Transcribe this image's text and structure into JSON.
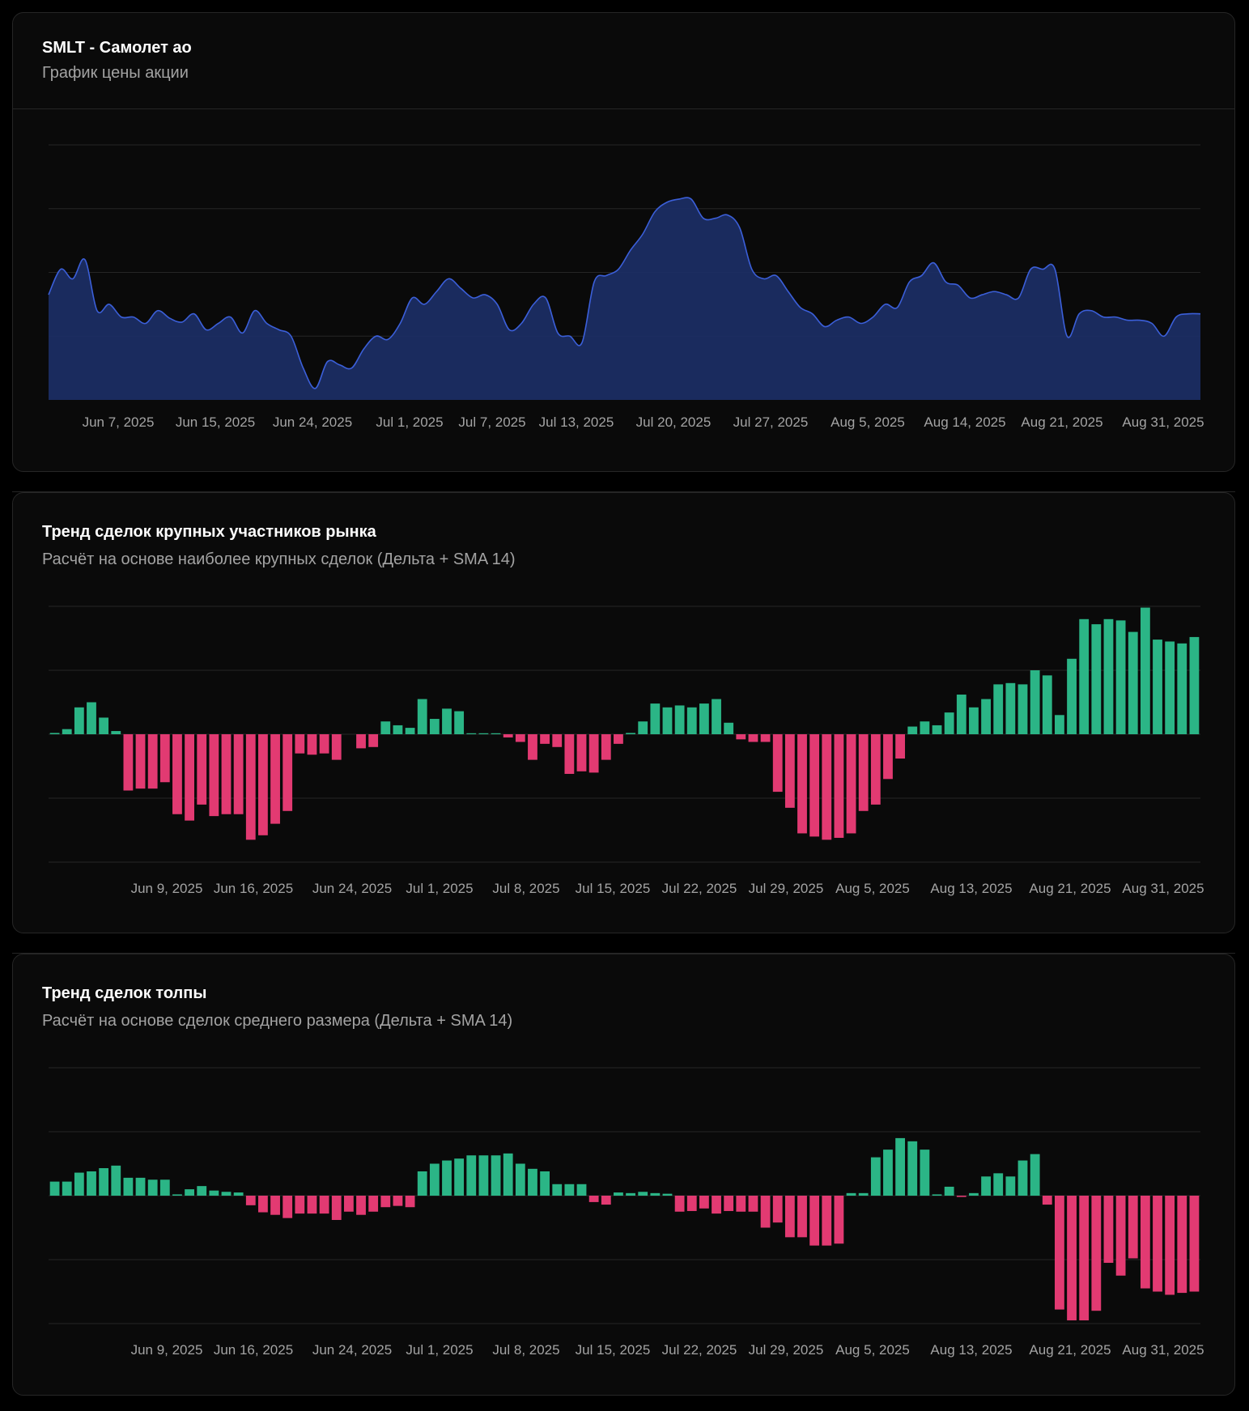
{
  "price_card": {
    "title": "SMLT - Самолет ао",
    "subtitle": "График цены акции"
  },
  "large_card": {
    "title": "Тренд сделок крупных участников рынка",
    "subtitle": "Расчёт на основе наиболее крупных сделок (Дельта + SMA 14)"
  },
  "crowd_card": {
    "title": "Тренд сделок толпы",
    "subtitle": "Расчёт на основе сделок среднего размера (Дельта + SMA 14)"
  },
  "colors": {
    "price_line": "#3b5fd9",
    "price_fill": "#1b2d63",
    "positive": "#2bb586",
    "negative": "#e23a72",
    "grid": "#262626",
    "card_bg": "#0a0a0a"
  },
  "chart_data": [
    {
      "type": "area",
      "ylim": [
        0,
        4
      ],
      "grid": true,
      "x_ticks": [
        "Jun 7, 2025",
        "Jun 15, 2025",
        "Jun 24, 2025",
        "Jul 1, 2025",
        "Jul 7, 2025",
        "Jul 13, 2025",
        "Jul 20, 2025",
        "Jul 27, 2025",
        "Aug 5, 2025",
        "Aug 14, 2025",
        "Aug 21, 2025",
        "Aug 31, 2025"
      ],
      "values": [
        1.65,
        2.05,
        1.9,
        2.2,
        1.4,
        1.5,
        1.3,
        1.3,
        1.2,
        1.4,
        1.28,
        1.22,
        1.35,
        1.1,
        1.2,
        1.3,
        1.05,
        1.4,
        1.2,
        1.1,
        1.0,
        0.5,
        0.18,
        0.6,
        0.55,
        0.5,
        0.8,
        1.0,
        0.95,
        1.2,
        1.6,
        1.5,
        1.7,
        1.9,
        1.75,
        1.6,
        1.65,
        1.5,
        1.1,
        1.2,
        1.5,
        1.6,
        1.05,
        1.0,
        0.9,
        1.85,
        1.95,
        2.05,
        2.35,
        2.6,
        2.95,
        3.1,
        3.15,
        3.15,
        2.85,
        2.85,
        2.9,
        2.7,
        2.05,
        1.9,
        1.95,
        1.7,
        1.45,
        1.35,
        1.15,
        1.25,
        1.3,
        1.2,
        1.3,
        1.5,
        1.45,
        1.85,
        1.95,
        2.15,
        1.85,
        1.8,
        1.6,
        1.65,
        1.7,
        1.65,
        1.6,
        2.05,
        2.05,
        2.05,
        1.0,
        1.35,
        1.4,
        1.3,
        1.3,
        1.25,
        1.25,
        1.2,
        1.0,
        1.3,
        1.35,
        1.35
      ]
    },
    {
      "type": "bar",
      "ylim": [
        -2,
        2
      ],
      "grid": true,
      "x_ticks": [
        "Jun 9, 2025",
        "Jun 16, 2025",
        "Jun 24, 2025",
        "Jul 1, 2025",
        "Jul 8, 2025",
        "Jul 15, 2025",
        "Jul 22, 2025",
        "Jul 29, 2025",
        "Aug 5, 2025",
        "Aug 13, 2025",
        "Aug 21, 2025",
        "Aug 31, 2025"
      ],
      "values": [
        0.02,
        0.08,
        0.42,
        0.5,
        0.26,
        0.05,
        -0.88,
        -0.85,
        -0.85,
        -0.75,
        -1.25,
        -1.35,
        -1.1,
        -1.28,
        -1.25,
        -1.25,
        -1.65,
        -1.58,
        -1.4,
        -1.2,
        -0.3,
        -0.32,
        -0.3,
        -0.4,
        null,
        -0.22,
        -0.2,
        0.2,
        0.14,
        0.1,
        0.55,
        0.24,
        0.4,
        0.36,
        0.0,
        0.0,
        0.0,
        -0.05,
        -0.12,
        -0.4,
        -0.15,
        -0.2,
        -0.62,
        -0.58,
        -0.6,
        -0.4,
        -0.15,
        0.02,
        0.2,
        0.48,
        0.42,
        0.45,
        0.42,
        0.48,
        0.55,
        0.18,
        -0.08,
        -0.12,
        -0.12,
        -0.9,
        -1.15,
        -1.55,
        -1.6,
        -1.65,
        -1.62,
        -1.55,
        -1.2,
        -1.1,
        -0.7,
        -0.38,
        0.12,
        0.2,
        0.14,
        0.34,
        0.62,
        0.42,
        0.55,
        0.78,
        0.8,
        0.78,
        1.0,
        0.92,
        0.3,
        1.18,
        1.8,
        1.72,
        1.8,
        1.78,
        1.6,
        1.98,
        1.48,
        1.45,
        1.42,
        1.52
      ]
    },
    {
      "type": "bar",
      "ylim": [
        -2,
        2
      ],
      "grid": true,
      "x_ticks": [
        "Jun 9, 2025",
        "Jun 16, 2025",
        "Jun 24, 2025",
        "Jul 1, 2025",
        "Jul 8, 2025",
        "Jul 15, 2025",
        "Jul 22, 2025",
        "Jul 29, 2025",
        "Aug 5, 2025",
        "Aug 13, 2025",
        "Aug 21, 2025",
        "Aug 31, 2025"
      ],
      "values": [
        0.22,
        0.22,
        0.36,
        0.38,
        0.43,
        0.47,
        0.28,
        0.28,
        0.25,
        0.25,
        0.02,
        0.1,
        0.15,
        0.08,
        0.06,
        0.05,
        -0.15,
        -0.26,
        -0.3,
        -0.35,
        -0.28,
        -0.28,
        -0.28,
        -0.38,
        -0.25,
        -0.3,
        -0.25,
        -0.18,
        -0.16,
        -0.18,
        0.38,
        0.5,
        0.55,
        0.58,
        0.63,
        0.63,
        0.63,
        0.66,
        0.5,
        0.42,
        0.38,
        0.18,
        0.18,
        0.18,
        -0.1,
        -0.14,
        0.05,
        0.04,
        0.06,
        0.04,
        0.03,
        -0.25,
        -0.24,
        -0.2,
        -0.28,
        -0.24,
        -0.25,
        -0.25,
        -0.5,
        -0.42,
        -0.65,
        -0.65,
        -0.78,
        -0.78,
        -0.75,
        0.04,
        0.04,
        0.6,
        0.72,
        0.9,
        0.85,
        0.72,
        0.02,
        0.14,
        -0.02,
        0.04,
        0.3,
        0.35,
        0.3,
        0.55,
        0.65,
        -0.14,
        -1.78,
        -1.95,
        -1.95,
        -1.8,
        -1.05,
        -1.25,
        -0.98,
        -1.45,
        -1.5,
        -1.55,
        -1.52,
        -1.5
      ]
    }
  ]
}
